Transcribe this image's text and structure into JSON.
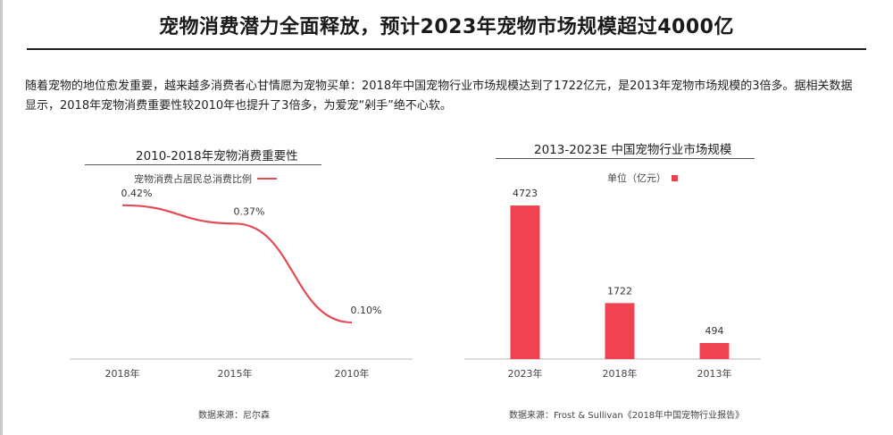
{
  "page": {
    "title": "宠物消费潜力全面释放，预计2023年宠物市场规模超过4000亿",
    "intro": "随着宠物的地位愈发重要，越来越多消费者心甘情愿为宠物买单：2018年中国宠物行业市场规模达到了1722亿元，是2013年宠物市场规模的3倍多。据相关数据显示，2018年宠物消费重要性较2010年也提升了3倍多，为爱宠“剁手”绝不心软。"
  },
  "left_chart": {
    "title": "2010-2018年宠物消费重要性",
    "legend": "宠物消费占居民总消费比例",
    "source": "数据来源：尼尔森"
  },
  "right_chart": {
    "title": "2013-2023E 中国宠物行业市场规模",
    "legend": "单位（亿元）",
    "source": "数据来源：Frost & Sullivan《2018年中国宠物行业报告》"
  },
  "colors": {
    "line": "#e34b57",
    "bar": "#f04352",
    "axis": "#bdbdbd"
  },
  "chart_data": [
    {
      "type": "line",
      "title": "2010-2018年宠物消费重要性",
      "x": [
        "2018年",
        "2015年",
        "2010年"
      ],
      "series": [
        {
          "name": "宠物消费占居民总消费比例",
          "values": [
            0.42,
            0.37,
            0.1
          ],
          "labels": [
            "0.42%",
            "0.37%",
            "0.10%"
          ]
        }
      ],
      "ylim": [
        0,
        0.5
      ]
    },
    {
      "type": "bar",
      "title": "2013-2023E 中国宠物行业市场规模",
      "categories": [
        "2023年",
        "2018年",
        "2013年"
      ],
      "values": [
        4723,
        1722,
        494
      ],
      "labels": [
        "4723",
        "1722",
        "494"
      ],
      "unit": "单位（亿元）",
      "ylim": [
        0,
        5000
      ]
    }
  ]
}
